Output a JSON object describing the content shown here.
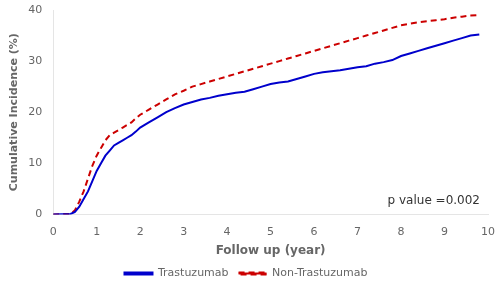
{
  "chart_data": {
    "type": "line",
    "xlabel": "Follow up (year)",
    "ylabel": "Cumulative Incidence (%)",
    "x": [
      0,
      0.4,
      0.5,
      0.6,
      0.7,
      0.8,
      0.9,
      1.0,
      1.1,
      1.2,
      1.3,
      1.4,
      1.5,
      1.6,
      1.7,
      1.8,
      1.9,
      2.0,
      2.2,
      2.4,
      2.6,
      2.8,
      3.0,
      3.2,
      3.4,
      3.6,
      3.8,
      4.0,
      4.2,
      4.4,
      4.6,
      4.8,
      5.0,
      5.2,
      5.4,
      5.6,
      5.8,
      6.0,
      6.2,
      6.4,
      6.6,
      6.8,
      7.0,
      7.2,
      7.4,
      7.6,
      7.8,
      8.0,
      8.2,
      8.4,
      8.6,
      8.8,
      9.0,
      9.2,
      9.4,
      9.6,
      9.8
    ],
    "series": [
      {
        "name": "Trastuzumab",
        "color": "#0000CC",
        "line_style": "solid",
        "values": [
          0,
          0.1,
          0.5,
          1.5,
          3.0,
          4.5,
          6.5,
          8.5,
          10.0,
          11.5,
          12.5,
          13.5,
          14.0,
          14.5,
          15.0,
          15.5,
          16.2,
          17.0,
          18.0,
          19.0,
          20.0,
          20.8,
          21.5,
          22.0,
          22.5,
          22.8,
          23.2,
          23.5,
          23.8,
          24.0,
          24.5,
          25.0,
          25.5,
          25.8,
          26.0,
          26.5,
          27.0,
          27.5,
          27.8,
          28.0,
          28.2,
          28.5,
          28.8,
          29.0,
          29.5,
          29.8,
          30.2,
          31.0,
          31.5,
          32.0,
          32.5,
          33.0,
          33.5,
          34.0,
          34.5,
          35.0,
          35.2
        ]
      },
      {
        "name": "Non-Trastuzumab",
        "color": "#CC0000",
        "line_style": "dashed",
        "values": [
          0,
          0.1,
          0.8,
          2.5,
          4.5,
          7.0,
          9.5,
          11.5,
          13.0,
          14.5,
          15.5,
          16.0,
          16.5,
          17.0,
          17.5,
          18.0,
          18.8,
          19.5,
          20.5,
          21.5,
          22.5,
          23.5,
          24.2,
          25.0,
          25.5,
          26.0,
          26.5,
          27.0,
          27.5,
          28.0,
          28.5,
          29.0,
          29.5,
          30.0,
          30.5,
          31.0,
          31.5,
          32.0,
          32.5,
          33.0,
          33.5,
          34.0,
          34.5,
          35.0,
          35.5,
          36.0,
          36.5,
          37.0,
          37.3,
          37.6,
          37.8,
          38.0,
          38.2,
          38.5,
          38.7,
          38.9,
          39.0
        ]
      }
    ],
    "xlim": [
      0,
      10
    ],
    "ylim": [
      0,
      40
    ],
    "xticks": [
      0,
      1,
      2,
      3,
      4,
      5,
      6,
      7,
      8,
      9,
      10
    ],
    "yticks": [
      0,
      10,
      20,
      30,
      40
    ],
    "annotations": [
      {
        "text": "p value =0.002"
      }
    ],
    "legend": "bottom",
    "grid": false
  }
}
